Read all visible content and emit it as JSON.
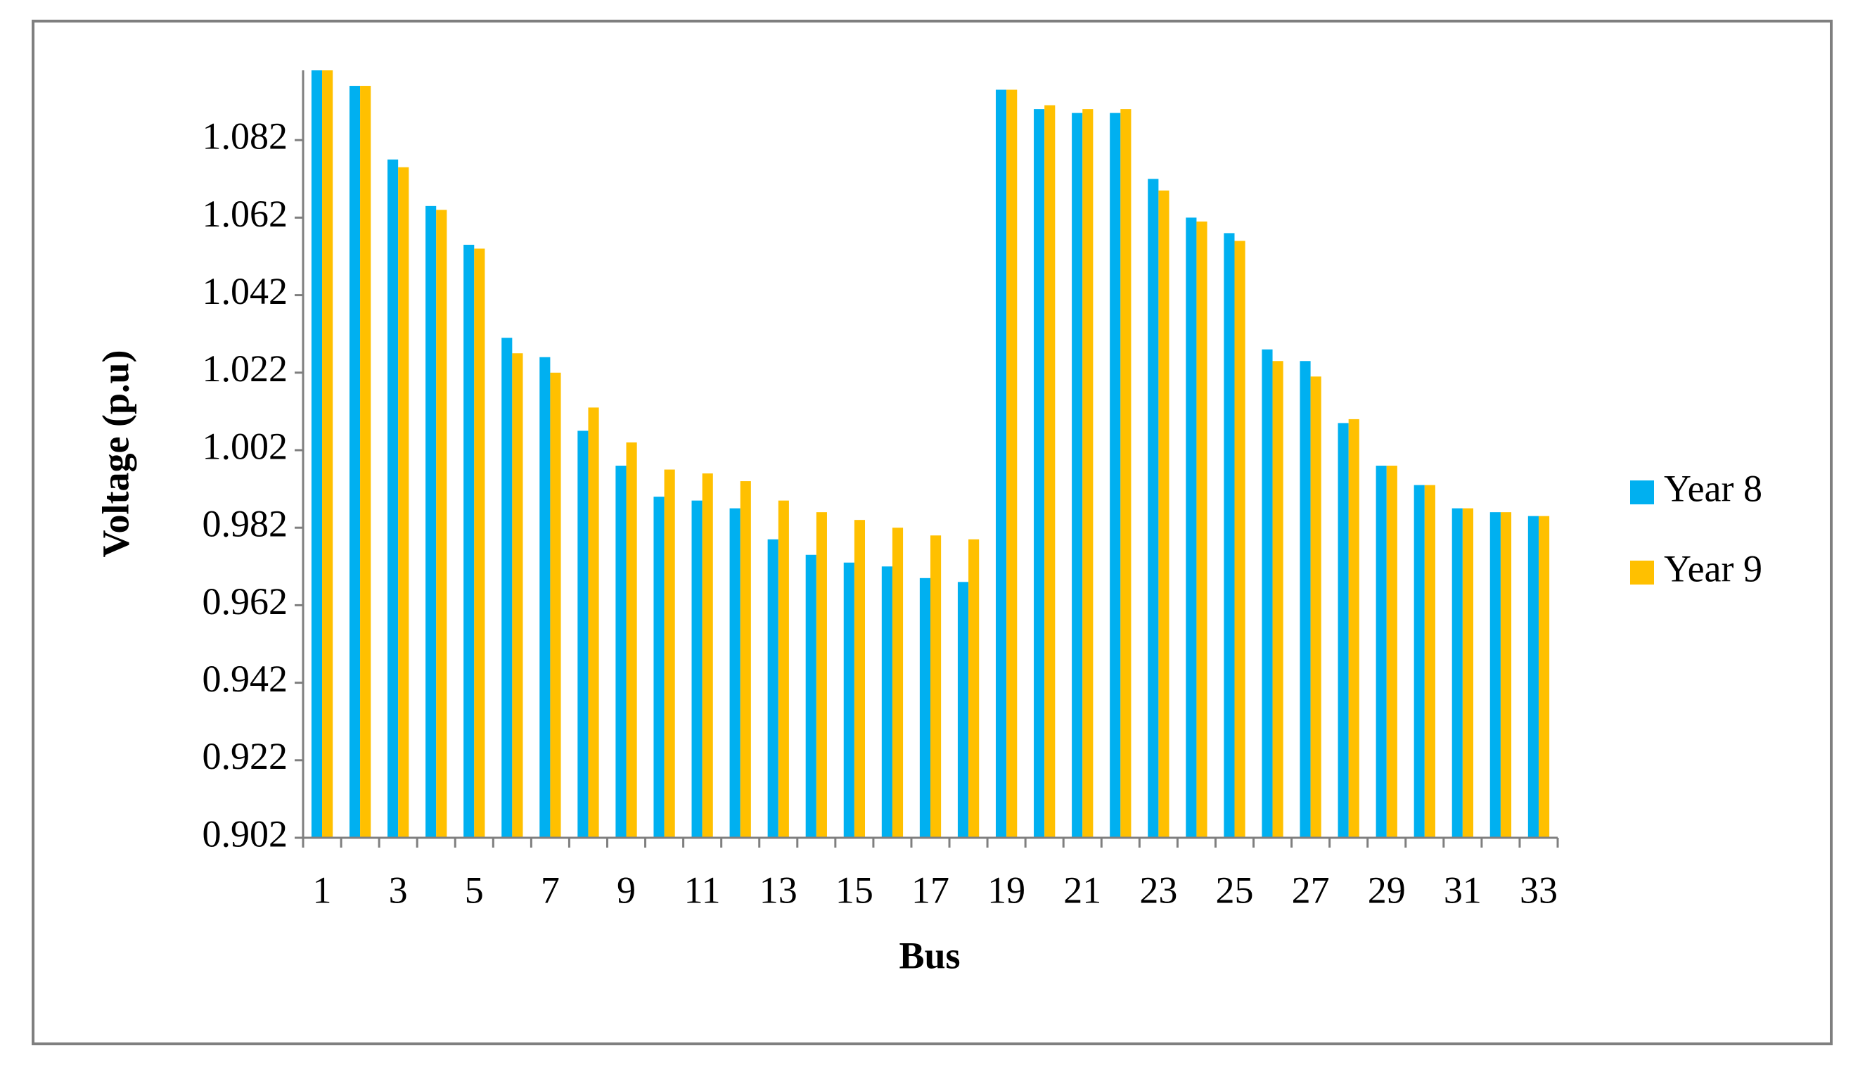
{
  "chart_data": {
    "type": "bar",
    "x_label": "Bus",
    "y_label": "Voltage (p.u)",
    "categories": [
      "1",
      null,
      "3",
      null,
      "5",
      null,
      "7",
      null,
      "9",
      null,
      "11",
      null,
      "13",
      null,
      "15",
      null,
      "17",
      null,
      "19",
      null,
      "21",
      null,
      "23",
      null,
      "25",
      null,
      "27",
      null,
      "29",
      null,
      "31",
      null,
      "33"
    ],
    "series": [
      {
        "name": "Year 8",
        "color": "#00b0f0",
        "values": [
          1.1,
          1.096,
          1.077,
          1.065,
          1.055,
          1.031,
          1.026,
          1.007,
          0.998,
          0.99,
          0.989,
          0.987,
          0.979,
          0.975,
          0.973,
          0.972,
          0.969,
          0.968,
          1.095,
          1.09,
          1.089,
          1.089,
          1.072,
          1.062,
          1.058,
          1.028,
          1.025,
          1.009,
          0.998,
          0.993,
          0.987,
          0.986,
          0.985
        ]
      },
      {
        "name": "Year 9",
        "color": "#ffc000",
        "values": [
          1.1,
          1.096,
          1.075,
          1.064,
          1.054,
          1.027,
          1.022,
          1.013,
          1.004,
          0.997,
          0.996,
          0.994,
          0.989,
          0.986,
          0.984,
          0.982,
          0.98,
          0.979,
          1.095,
          1.091,
          1.09,
          1.09,
          1.069,
          1.061,
          1.056,
          1.025,
          1.021,
          1.01,
          0.998,
          0.993,
          0.987,
          0.986,
          0.985
        ]
      }
    ],
    "ylim": [
      0.902,
      1.1
    ],
    "yticks": [
      0.902,
      0.922,
      0.942,
      0.962,
      0.982,
      1.002,
      1.022,
      1.042,
      1.062,
      1.082
    ],
    "grid": false,
    "legend": "right"
  }
}
